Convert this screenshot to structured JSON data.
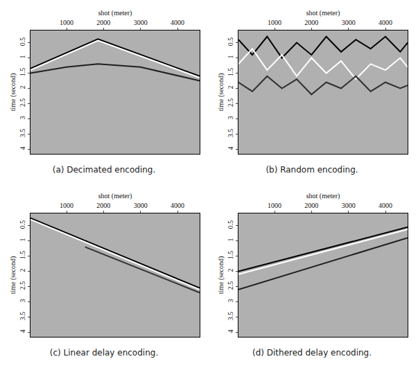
{
  "chart_data": [
    {
      "type": "line",
      "title": "(a) Decimated encoding.",
      "xlabel": "shot (meter)",
      "ylabel": "time (second)",
      "xlim": [
        25,
        4600
      ],
      "ylim": [
        4.15,
        0.1
      ],
      "xticks": [
        1000,
        2000,
        3000,
        4000
      ],
      "yticks": [
        0.5,
        1,
        1.5,
        2,
        2.5,
        3,
        3.5,
        4
      ],
      "grid": false,
      "series": [
        {
          "color": "#000000",
          "x": [
            25,
            1850,
            4600
          ],
          "values": [
            1.35,
            0.38,
            1.6
          ]
        },
        {
          "color": "#ffffff",
          "x": [
            25,
            1850,
            4600
          ],
          "values": [
            1.4,
            0.43,
            1.65
          ]
        },
        {
          "color": "#202020",
          "x": [
            25,
            1000,
            1850,
            3000,
            4600
          ],
          "values": [
            1.5,
            1.3,
            1.2,
            1.3,
            1.75
          ]
        }
      ]
    },
    {
      "type": "line",
      "title": "(b) Random encoding.",
      "xlabel": "shot (meter)",
      "ylabel": "time (second)",
      "xlim": [
        25,
        4600
      ],
      "ylim": [
        4.15,
        0.1
      ],
      "xticks": [
        1000,
        2000,
        3000,
        4000
      ],
      "yticks": [
        0.5,
        1,
        1.5,
        2,
        2.5,
        3,
        3.5,
        4
      ],
      "grid": false,
      "series": [
        {
          "color": "#000000",
          "x": [
            25,
            400,
            800,
            1200,
            1600,
            2000,
            2400,
            2800,
            3200,
            3600,
            4000,
            4400,
            4600
          ],
          "values": [
            0.4,
            0.9,
            0.3,
            1.0,
            0.5,
            0.9,
            0.3,
            0.8,
            0.4,
            0.7,
            0.3,
            0.8,
            0.5
          ]
        },
        {
          "color": "#ffffff",
          "x": [
            25,
            400,
            800,
            1200,
            1600,
            2000,
            2400,
            2800,
            3200,
            3600,
            4000,
            4400,
            4600
          ],
          "values": [
            1.2,
            0.7,
            1.4,
            0.9,
            1.6,
            1.0,
            1.5,
            1.1,
            1.7,
            1.2,
            1.4,
            1.0,
            1.3
          ]
        },
        {
          "color": "#303030",
          "x": [
            25,
            400,
            800,
            1200,
            1600,
            2000,
            2400,
            2800,
            3200,
            3600,
            4000,
            4400,
            4600
          ],
          "values": [
            1.8,
            2.1,
            1.6,
            2.0,
            1.7,
            2.2,
            1.8,
            2.0,
            1.6,
            2.1,
            1.8,
            2.0,
            1.9
          ]
        }
      ]
    },
    {
      "type": "line",
      "title": "(c) Linear delay encoding.",
      "xlabel": "shot (meter)",
      "ylabel": "time (second)",
      "xlim": [
        25,
        4600
      ],
      "ylim": [
        4.15,
        0.1
      ],
      "xticks": [
        1000,
        2000,
        3000,
        4000
      ],
      "yticks": [
        0.5,
        1,
        1.5,
        2,
        2.5,
        3,
        3.5,
        4
      ],
      "grid": false,
      "series": [
        {
          "color": "#000000",
          "x": [
            25,
            4600
          ],
          "values": [
            0.25,
            2.55
          ]
        },
        {
          "color": "#ffffff",
          "x": [
            25,
            4600
          ],
          "values": [
            0.3,
            2.6
          ]
        },
        {
          "color": "#303030",
          "x": [
            1500,
            4600
          ],
          "values": [
            1.2,
            2.7
          ]
        }
      ]
    },
    {
      "type": "line",
      "title": "(d) Dithered delay encoding.",
      "xlabel": "shot (meter)",
      "ylabel": "time (second)",
      "xlim": [
        25,
        4600
      ],
      "ylim": [
        4.15,
        0.1
      ],
      "xticks": [
        1000,
        2000,
        3000,
        4000
      ],
      "yticks": [
        0.5,
        1,
        1.5,
        2,
        2.5,
        3,
        3.5,
        4
      ],
      "grid": false,
      "series": [
        {
          "color": "#000000",
          "x": [
            25,
            4600
          ],
          "values": [
            2.0,
            0.55
          ]
        },
        {
          "color": "#ffffff",
          "x": [
            25,
            4600
          ],
          "values": [
            2.1,
            0.62
          ]
        },
        {
          "color": "#202020",
          "x": [
            25,
            4600
          ],
          "values": [
            2.6,
            0.9
          ]
        }
      ]
    }
  ]
}
